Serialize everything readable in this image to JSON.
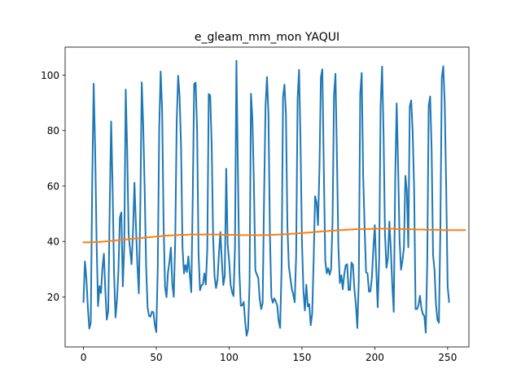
{
  "chart_data": {
    "type": "line",
    "title": "e_gleam_mm_mon YAQUI",
    "xlabel": "",
    "ylabel": "",
    "xlim": [
      -12.6,
      264.6
    ],
    "ylim": [
      1.96,
      110.1
    ],
    "xticks": [
      0,
      50,
      100,
      150,
      200,
      250
    ],
    "yticks": [
      20,
      40,
      60,
      80,
      100
    ],
    "grid": false,
    "series": [
      {
        "color": "#1f77b4",
        "values": [
          18.2,
          32.8,
          26.6,
          16.3,
          8.6,
          10.6,
          61.3,
          96.9,
          74.0,
          40.0,
          16.7,
          23.9,
          21.4,
          30.4,
          35.6,
          22.3,
          11.8,
          14.9,
          52.0,
          83.3,
          59.3,
          28.4,
          12.6,
          18.9,
          29.6,
          48.7,
          50.5,
          23.8,
          38.1,
          94.8,
          72.9,
          42.6,
          37.1,
          31.8,
          43.4,
          61.2,
          45.9,
          31.7,
          21.3,
          51.8,
          97.4,
          82.0,
          59.1,
          31.3,
          16.4,
          13.1,
          12.9,
          14.7,
          14.5,
          9.9,
          7.3,
          30.8,
          81.0,
          101.3,
          87.3,
          46.2,
          23.6,
          19.9,
          28.8,
          32.5,
          37.8,
          24.4,
          20.0,
          40.8,
          83.2,
          99.8,
          92.3,
          73.8,
          37.7,
          28.5,
          31.5,
          29.0,
          34.6,
          27.9,
          21.7,
          55.3,
          96.8,
          97.3,
          80.4,
          35.6,
          22.4,
          24.2,
          24.5,
          28.5,
          24.5,
          37.3,
          93.2,
          92.6,
          75.0,
          41.5,
          27.4,
          23.2,
          26.0,
          35.7,
          43.4,
          32.8,
          24.3,
          27.6,
          66.3,
          38.9,
          33.0,
          24.5,
          21.7,
          20.3,
          37.3,
          105.2,
          66.3,
          29.5,
          16.8,
          17.0,
          18.2,
          11.1,
          6.0,
          8.3,
          24.6,
          93.3,
          84.0,
          60.6,
          29.6,
          28.1,
          26.8,
          19.2,
          15.6,
          17.7,
          56.4,
          89.1,
          99.3,
          85.8,
          42.1,
          19.9,
          17.9,
          19.5,
          18.4,
          17.0,
          11.3,
          8.8,
          30.3,
          92.1,
          96.6,
          85.9,
          45.5,
          31.0,
          26.9,
          22.9,
          20.9,
          18.1,
          34.8,
          91.6,
          101.9,
          76.0,
          39.8,
          22.2,
          15.1,
          24.4,
          16.6,
          17.4,
          9.8,
          13.9,
          32.8,
          56.3,
          54.1,
          45.9,
          66.3,
          99.3,
          102.1,
          65.8,
          33.0,
          28.5,
          30.4,
          28.0,
          30.0,
          47.5,
          92.7,
          100.5,
          70.9,
          38.1,
          25.0,
          27.8,
          22.8,
          28.0,
          31.4,
          31.8,
          22.5,
          22.5,
          32.4,
          31.6,
          22.8,
          17.3,
          8.8,
          25.8,
          93.3,
          100.8,
          64.1,
          45.2,
          28.9,
          28.5,
          21.9,
          22.0,
          26.9,
          37.4,
          45.9,
          30.0,
          16.3,
          33.9,
          89.0,
          103.1,
          79.1,
          42.6,
          30.5,
          34.0,
          47.2,
          37.3,
          24.3,
          14.6,
          61.8,
          89.8,
          67.6,
          40.7,
          29.8,
          33.1,
          37.8,
          63.7,
          58.3,
          37.9,
          88.6,
          90.9,
          79.5,
          59.0,
          15.6,
          15.6,
          17.0,
          20.4,
          15.9,
          13.8,
          13.1,
          7.1,
          32.4,
          89.0,
          92.3,
          73.3,
          35.1,
          29.6,
          17.3,
          11.7,
          10.7,
          43.9,
          99.1,
          103.2,
          89.8,
          59.7,
          23.8,
          18.2
        ]
      },
      {
        "color": "#ff7f0e",
        "values": [
          39.7,
          39.7,
          39.7,
          39.7,
          39.7,
          39.7,
          39.7,
          39.8,
          39.8,
          39.8,
          39.8,
          39.8,
          39.9,
          39.9,
          40.0,
          40.0,
          40.1,
          40.1,
          40.2,
          40.2,
          40.3,
          40.3,
          40.4,
          40.4,
          40.5,
          40.5,
          40.6,
          40.6,
          40.7,
          40.7,
          40.8,
          40.8,
          40.9,
          40.9,
          41.0,
          41.0,
          41.1,
          41.1,
          41.2,
          41.2,
          41.3,
          41.3,
          41.4,
          41.4,
          41.5,
          41.5,
          41.6,
          41.6,
          41.7,
          41.7,
          41.8,
          41.8,
          41.9,
          41.9,
          42.0,
          42.0,
          42.1,
          42.1,
          42.1,
          42.2,
          42.2,
          42.2,
          42.3,
          42.3,
          42.3,
          42.3,
          42.4,
          42.4,
          42.4,
          42.4,
          42.4,
          42.4,
          42.5,
          42.5,
          42.5,
          42.5,
          42.5,
          42.5,
          42.5,
          42.5,
          42.5,
          42.5,
          42.5,
          42.5,
          42.5,
          42.5,
          42.5,
          42.5,
          42.5,
          42.5,
          42.5,
          42.5,
          42.5,
          42.5,
          42.4,
          42.4,
          42.4,
          42.4,
          42.4,
          42.4,
          42.4,
          42.4,
          42.4,
          42.4,
          42.4,
          42.4,
          42.3,
          42.3,
          42.3,
          42.3,
          42.3,
          42.3,
          42.3,
          42.3,
          42.3,
          42.3,
          42.3,
          42.3,
          42.3,
          42.3,
          42.3,
          42.3,
          42.3,
          42.3,
          42.3,
          42.3,
          42.3,
          42.3,
          42.3,
          42.4,
          42.4,
          42.4,
          42.4,
          42.5,
          42.5,
          42.5,
          42.5,
          42.6,
          42.6,
          42.6,
          42.7,
          42.7,
          42.7,
          42.8,
          42.8,
          42.8,
          42.9,
          42.9,
          43.0,
          43.0,
          43.0,
          43.1,
          43.1,
          43.2,
          43.2,
          43.2,
          43.3,
          43.3,
          43.4,
          43.4,
          43.5,
          43.5,
          43.5,
          43.6,
          43.6,
          43.7,
          43.7,
          43.7,
          43.8,
          43.8,
          43.9,
          43.9,
          43.9,
          44.0,
          44.0,
          44.0,
          44.1,
          44.1,
          44.1,
          44.2,
          44.2,
          44.2,
          44.3,
          44.3,
          44.3,
          44.3,
          44.4,
          44.4,
          44.4,
          44.4,
          44.4,
          44.5,
          44.5,
          44.5,
          44.5,
          44.5,
          44.5,
          44.5,
          44.6,
          44.6,
          44.6,
          44.6,
          44.6,
          44.6,
          44.6,
          44.6,
          44.6,
          44.6,
          44.6,
          44.6,
          44.6,
          44.6,
          44.6,
          44.6,
          44.5,
          44.5,
          44.5,
          44.5,
          44.5,
          44.5,
          44.5,
          44.5,
          44.4,
          44.4,
          44.4,
          44.4,
          44.4,
          44.4,
          44.3,
          44.3,
          44.3,
          44.3,
          44.3,
          44.3,
          44.3,
          44.2,
          44.2,
          44.2,
          44.2,
          44.2,
          44.2,
          44.2,
          44.2,
          44.2,
          44.2,
          44.2,
          44.1,
          44.1,
          44.1,
          44.1,
          44.1,
          44.1,
          44.1,
          44.1,
          44.1,
          44.1,
          44.1,
          44.1,
          44.1,
          44.1,
          44.1,
          44.1,
          44.1
        ]
      }
    ]
  }
}
